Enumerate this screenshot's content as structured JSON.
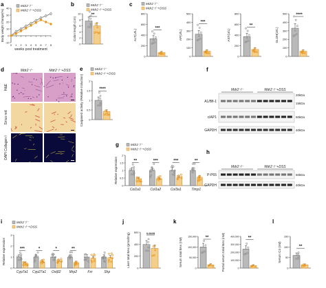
{
  "colors": {
    "ctrl_fill": "#b9b9b9",
    "ctrl_stroke": "#6e6e6e",
    "dss_fill": "#f3cf8c",
    "dss_stroke": "#d98b1c",
    "dss_dot": "#e8951e",
    "ctrl_dot": "#8f8f8f"
  },
  "legend": {
    "ctrl": "Mdr2⁻/⁻",
    "dss": "Mdr2⁻/⁻+DSS"
  },
  "panel_letters": [
    "a",
    "b",
    "c",
    "d",
    "e",
    "f",
    "g",
    "h",
    "i",
    "j",
    "k",
    "l"
  ],
  "panel_d": {
    "col_labels": [
      "Mdr2⁻/⁻",
      "Mdr2⁻/⁻+DSS"
    ],
    "row_labels": [
      "H&E",
      "Sirius red",
      "DAPI Collagen I"
    ]
  },
  "panel_f": {
    "group_labels": [
      "Mdr2⁻/⁻",
      "Mdr2⁻/⁻+DSS"
    ],
    "bands": [
      {
        "name": "A1/Bfl-1",
        "kda": [
          "20kDa",
          "15kDa"
        ]
      },
      {
        "name": "cIAP1",
        "kda": [
          "60kDa"
        ]
      },
      {
        "name": "GAPDH",
        "kda": [
          "40kDa"
        ]
      }
    ]
  },
  "panel_h": {
    "group_labels": [
      "Mdr2⁻/⁻",
      "Mdr2⁻/⁻+DSS"
    ],
    "bands": [
      {
        "name": "P-P65",
        "kda": [
          "60kDa"
        ]
      },
      {
        "name": "GAPDH",
        "kda": [
          "40kDa"
        ]
      }
    ]
  },
  "chart_data": [
    {
      "id": "a",
      "type": "line",
      "xlabel": "weeks post treatment",
      "ylabel": "Body weight change(%)",
      "x": [
        0,
        1,
        2,
        3,
        4,
        5,
        6,
        7,
        8
      ],
      "xlim": [
        0,
        8
      ],
      "ylim": [
        -10,
        40
      ],
      "yticks": [
        -10,
        0,
        10,
        20,
        30,
        40
      ],
      "series": [
        {
          "name": "Mdr2⁻/⁻",
          "values": [
            0,
            6,
            10,
            14,
            18,
            22,
            26,
            29,
            32
          ]
        },
        {
          "name": "Mdr2⁻/⁻+DSS",
          "values": [
            0,
            3,
            7,
            11,
            15,
            19,
            23,
            20,
            17
          ]
        }
      ]
    },
    {
      "id": "b",
      "type": "bar",
      "ylabel": "Colon length (cm)",
      "ylim": [
        0,
        10
      ],
      "yticks": [
        0,
        2,
        4,
        6,
        8,
        10
      ],
      "sig": "**",
      "series": [
        {
          "name": "Mdr2⁻/⁻",
          "values": [
            7.6
          ]
        },
        {
          "name": "Mdr2⁻/⁻+DSS",
          "values": [
            6.0
          ]
        }
      ]
    },
    {
      "id": "c1",
      "type": "bar",
      "ylabel": "ALT(U/L)",
      "ylim": [
        0,
        800
      ],
      "yticks": [
        0,
        200,
        400,
        600,
        800
      ],
      "sig": "***",
      "series": [
        {
          "name": "Mdr2⁻/⁻",
          "values": [
            330
          ]
        },
        {
          "name": "Mdr2⁻/⁻+DSS",
          "values": [
            70
          ]
        }
      ]
    },
    {
      "id": "c2",
      "type": "bar",
      "ylabel": "AP(U/L)",
      "ylim": [
        0,
        500
      ],
      "yticks": [
        0,
        100,
        200,
        300,
        400,
        500
      ],
      "sig": "***",
      "series": [
        {
          "name": "Mdr2⁻/⁻",
          "values": [
            260
          ]
        },
        {
          "name": "Mdr2⁻/⁻+DSS",
          "values": [
            60
          ]
        }
      ]
    },
    {
      "id": "c3",
      "type": "bar",
      "ylabel": "AST(U/L)",
      "ylim": [
        0,
        800
      ],
      "yticks": [
        0,
        200,
        400,
        600,
        800
      ],
      "sig": "**",
      "series": [
        {
          "name": "Mdr2⁻/⁻",
          "values": [
            370
          ]
        },
        {
          "name": "Mdr2⁻/⁻+DSS",
          "values": [
            130
          ]
        }
      ]
    },
    {
      "id": "c4",
      "type": "bar",
      "ylabel": "GLDH(U/L)",
      "ylim": [
        0,
        500
      ],
      "yticks": [
        0,
        100,
        200,
        300,
        400,
        500
      ],
      "sig": "****",
      "series": [
        {
          "name": "Mdr2⁻/⁻",
          "values": [
            330
          ]
        },
        {
          "name": "Mdr2⁻/⁻+DSS",
          "values": [
            60
          ]
        }
      ]
    },
    {
      "id": "e",
      "type": "bar",
      "ylabel": "Caspase3 activity (Relative induction)",
      "ylim": [
        0,
        2.0
      ],
      "yticks": [
        0,
        0.5,
        1.0,
        1.5,
        2.0
      ],
      "sig": "****",
      "series": [
        {
          "name": "Mdr2⁻/⁻",
          "values": [
            1.0
          ]
        },
        {
          "name": "Mdr2⁻/⁻+DSS",
          "values": [
            0.42
          ]
        }
      ]
    },
    {
      "id": "g",
      "type": "bar",
      "ylabel": "Relative expression",
      "categories": [
        "Col1a1",
        "Col1a2",
        "Col3a1",
        "Timp1"
      ],
      "ylim": [
        0,
        2.0
      ],
      "yticks": [
        0,
        0.5,
        1.0,
        1.5,
        2.0
      ],
      "sig": [
        "**",
        "***",
        "***",
        "**"
      ],
      "series": [
        {
          "name": "Mdr2⁻/⁻",
          "values": [
            1.0,
            1.0,
            1.0,
            1.0
          ]
        },
        {
          "name": "Mdr2⁻/⁻+DSS",
          "values": [
            0.45,
            0.45,
            0.52,
            0.55
          ]
        }
      ]
    },
    {
      "id": "i",
      "type": "bar",
      "ylabel": "Relative expression",
      "categories": [
        "Cyp7a1",
        "Cyp27a1",
        "Ostβ2",
        "Mrp2",
        "Fxr",
        "Shp"
      ],
      "ylim": [
        0,
        3
      ],
      "yticks": [
        0,
        1,
        2,
        3
      ],
      "sig": [
        "***",
        "*",
        "*",
        "**",
        "",
        ""
      ],
      "series": [
        {
          "name": "Mdr2⁻/⁻",
          "values": [
            1.0,
            1.0,
            1.0,
            1.0,
            1.0,
            1.0
          ]
        },
        {
          "name": "Mdr2⁻/⁻+DSS",
          "values": [
            0.45,
            0.55,
            0.6,
            0.5,
            0.9,
            0.95
          ]
        }
      ]
    },
    {
      "id": "j",
      "type": "bar",
      "ylabel": "Liver total BAs (pmol/mg)",
      "ylim": [
        0,
        600
      ],
      "yticks": [
        0,
        200,
        400,
        600
      ],
      "sig": "0.0605",
      "series": [
        {
          "name": "Mdr2⁻/⁻",
          "values": [
            395
          ]
        },
        {
          "name": "Mdr2⁻/⁻+DSS",
          "values": [
            330
          ]
        }
      ]
    },
    {
      "id": "k1",
      "type": "bar",
      "ylabel": "Serum total BAs (nM)",
      "ylim": [
        0,
        150000
      ],
      "yticks": [
        0,
        50000,
        100000,
        150000
      ],
      "sig": "**",
      "series": [
        {
          "name": "Mdr2⁻/⁻",
          "values": [
            100000
          ]
        },
        {
          "name": "Mdr2⁻/⁻+DSS",
          "values": [
            15000
          ]
        }
      ]
    },
    {
      "id": "k2",
      "type": "bar",
      "ylabel": "Portal serum total BAs (nM)",
      "ylim": [
        0,
        400000
      ],
      "yticks": [
        0,
        100000,
        200000,
        300000,
        400000
      ],
      "sig": "**",
      "series": [
        {
          "name": "Mdr2⁻/⁻",
          "values": [
            240000
          ]
        },
        {
          "name": "Mdr2⁻/⁻+DSS",
          "values": [
            30000
          ]
        }
      ]
    },
    {
      "id": "l",
      "type": "bar",
      "ylabel": "Serum C4 (nM)",
      "ylim": [
        0,
        150
      ],
      "yticks": [
        0,
        50,
        100,
        150
      ],
      "sig": "**",
      "series": [
        {
          "name": "Mdr2⁻/⁻",
          "values": [
            60
          ]
        },
        {
          "name": "Mdr2⁻/⁻+DSS",
          "values": [
            15
          ]
        }
      ]
    }
  ]
}
